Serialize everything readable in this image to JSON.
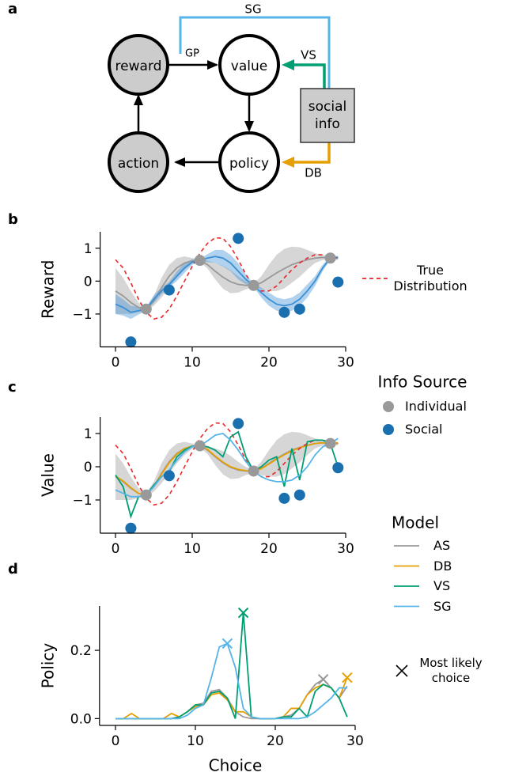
{
  "diagram": {
    "panel_label": "a",
    "nodes": [
      {
        "label": "reward"
      },
      {
        "label": "value"
      },
      {
        "label": "policy"
      },
      {
        "label": "action"
      },
      {
        "label": "social info"
      }
    ],
    "edges": [
      {
        "label": "GP"
      },
      {
        "label": "VS"
      },
      {
        "label": "DB"
      },
      {
        "label": "SG"
      }
    ]
  },
  "chart_data": [
    {
      "type": "line",
      "panel_label": "b",
      "ylabel": "Reward",
      "x": [
        0,
        1,
        2,
        3,
        4,
        5,
        6,
        7,
        8,
        9,
        10,
        11,
        12,
        13,
        14,
        15,
        16,
        17,
        18,
        19,
        20,
        21,
        22,
        23,
        24,
        25,
        26,
        27,
        28,
        29
      ],
      "xlim": [
        -2,
        30
      ],
      "xticks": [
        0,
        10,
        20,
        30
      ],
      "ylim": [
        -2,
        1.5
      ],
      "yticks": [
        {
          "value": -1,
          "label": "−1"
        },
        0,
        1
      ],
      "series": [
        {
          "color": "#999999",
          "values": [
            -0.3,
            -0.45,
            -0.65,
            -0.8,
            -0.85,
            -0.6,
            -0.2,
            0.15,
            0.4,
            0.55,
            0.62,
            0.63,
            0.5,
            0.3,
            0.12,
            -0.02,
            -0.1,
            -0.13,
            -0.13,
            -0.05,
            0.1,
            0.25,
            0.38,
            0.5,
            0.58,
            0.65,
            0.7,
            0.72,
            0.7,
            0.7
          ],
          "lower": [
            -1.0,
            -1.0,
            -1.0,
            -0.95,
            -0.9,
            -0.75,
            -0.5,
            -0.2,
            0.1,
            0.35,
            0.54,
            0.58,
            0.38,
            0.05,
            -0.23,
            -0.37,
            -0.35,
            -0.25,
            -0.18,
            -0.25,
            -0.3,
            -0.3,
            -0.22,
            -0.05,
            0.13,
            0.35,
            0.55,
            0.64,
            0.65,
            0.65
          ],
          "upper": [
            0.4,
            0.1,
            -0.3,
            -0.65,
            -0.8,
            -0.45,
            0.1,
            0.5,
            0.7,
            0.75,
            0.7,
            0.68,
            0.62,
            0.55,
            0.47,
            0.33,
            0.15,
            -0.01,
            -0.08,
            0.15,
            0.5,
            0.8,
            0.98,
            1.05,
            1.03,
            0.95,
            0.85,
            0.8,
            0.75,
            0.75
          ]
        },
        {
          "color": "#3b8fd4",
          "values": [
            -0.7,
            -0.8,
            -0.95,
            -0.9,
            -0.85,
            -0.55,
            -0.3,
            -0.1,
            0.15,
            0.4,
            0.58,
            0.63,
            0.7,
            0.75,
            0.7,
            0.55,
            0.3,
            0.05,
            -0.13,
            -0.35,
            -0.55,
            -0.7,
            -0.75,
            -0.7,
            -0.55,
            -0.3,
            0.0,
            0.4,
            0.7,
            0.72
          ],
          "lower": [
            -1.0,
            -1.05,
            -1.15,
            -1.02,
            -0.9,
            -0.67,
            -0.4,
            -0.18,
            0.0,
            0.25,
            0.5,
            0.58,
            0.58,
            0.55,
            0.45,
            0.3,
            0.05,
            -0.1,
            -0.18,
            -0.5,
            -0.75,
            -0.9,
            -0.95,
            -0.9,
            -0.75,
            -0.5,
            -0.15,
            0.3,
            0.65,
            0.67
          ],
          "upper": [
            -0.4,
            -0.55,
            -0.75,
            -0.78,
            -0.8,
            -0.43,
            -0.2,
            -0.02,
            0.3,
            0.55,
            0.66,
            0.68,
            0.82,
            0.95,
            0.95,
            0.8,
            0.55,
            0.2,
            -0.08,
            -0.2,
            -0.35,
            -0.5,
            -0.55,
            -0.5,
            -0.35,
            -0.1,
            0.15,
            0.5,
            0.75,
            0.77
          ]
        },
        {
          "name": "True Distribution",
          "color": "#e8282a",
          "dashed": true,
          "values": [
            0.65,
            0.4,
            -0.05,
            -0.55,
            -0.95,
            -1.15,
            -1.1,
            -0.85,
            -0.45,
            0.0,
            0.45,
            0.85,
            1.15,
            1.32,
            1.3,
            1.05,
            0.65,
            0.2,
            -0.15,
            -0.3,
            -0.3,
            -0.15,
            0.1,
            0.35,
            0.55,
            0.7,
            0.8,
            0.8,
            0.75,
            0.7
          ]
        }
      ],
      "scatter": [
        {
          "color": "#999999",
          "x": [
            4,
            11,
            18,
            28
          ],
          "y": [
            -0.85,
            0.63,
            -0.13,
            0.7
          ]
        },
        {
          "color": "#1a6faf",
          "x": [
            2,
            7,
            16,
            22,
            24,
            29
          ],
          "y": [
            -1.85,
            -0.27,
            1.3,
            -0.95,
            -0.85,
            -0.03
          ]
        }
      ]
    },
    {
      "type": "line",
      "panel_label": "c",
      "ylabel": "Value",
      "legend_title": "Info Source",
      "x": [
        0,
        1,
        2,
        3,
        4,
        5,
        6,
        7,
        8,
        9,
        10,
        11,
        12,
        13,
        14,
        15,
        16,
        17,
        18,
        19,
        20,
        21,
        22,
        23,
        24,
        25,
        26,
        27,
        28,
        29
      ],
      "xlim": [
        -2,
        30
      ],
      "xticks": [
        0,
        10,
        20,
        30
      ],
      "ylim": [
        -2,
        1.5
      ],
      "yticks": [
        {
          "value": -1,
          "label": "−1"
        },
        0,
        1
      ],
      "series": [
        {
          "color": "#999999",
          "values": [
            -0.3,
            -0.45,
            -0.65,
            -0.8,
            -0.85,
            -0.6,
            -0.2,
            0.15,
            0.4,
            0.55,
            0.62,
            0.63,
            0.5,
            0.3,
            0.12,
            -0.02,
            -0.1,
            -0.13,
            -0.13,
            -0.05,
            0.1,
            0.25,
            0.38,
            0.5,
            0.58,
            0.65,
            0.7,
            0.72,
            0.7,
            0.7
          ],
          "lower": [
            -1.0,
            -1.0,
            -1.0,
            -0.95,
            -0.9,
            -0.75,
            -0.5,
            -0.2,
            0.1,
            0.35,
            0.54,
            0.58,
            0.38,
            0.05,
            -0.23,
            -0.37,
            -0.35,
            -0.25,
            -0.18,
            -0.25,
            -0.3,
            -0.3,
            -0.22,
            -0.05,
            0.13,
            0.35,
            0.55,
            0.64,
            0.65,
            0.65
          ],
          "upper": [
            0.4,
            0.1,
            -0.3,
            -0.65,
            -0.8,
            -0.45,
            0.1,
            0.5,
            0.7,
            0.75,
            0.7,
            0.68,
            0.62,
            0.55,
            0.47,
            0.33,
            0.15,
            -0.01,
            -0.08,
            0.15,
            0.5,
            0.8,
            0.98,
            1.05,
            1.03,
            0.95,
            0.85,
            0.8,
            0.75,
            0.75
          ]
        },
        {
          "color": "#e69f00",
          "values": [
            -0.28,
            -0.43,
            -0.63,
            -0.8,
            -0.85,
            -0.6,
            -0.22,
            0.12,
            0.38,
            0.55,
            0.62,
            0.63,
            0.52,
            0.32,
            0.14,
            0.0,
            -0.08,
            -0.12,
            -0.13,
            -0.06,
            0.08,
            0.23,
            0.36,
            0.48,
            0.57,
            0.64,
            0.7,
            0.72,
            0.7,
            0.72
          ]
        },
        {
          "color": "#e8282a",
          "dashed": true,
          "values": [
            0.65,
            0.4,
            -0.05,
            -0.55,
            -0.95,
            -1.15,
            -1.1,
            -0.85,
            -0.45,
            0.0,
            0.45,
            0.85,
            1.15,
            1.32,
            1.3,
            1.05,
            0.65,
            0.2,
            -0.15,
            -0.3,
            -0.3,
            -0.15,
            0.1,
            0.35,
            0.55,
            0.7,
            0.8,
            0.8,
            0.75,
            0.7
          ]
        },
        {
          "color": "#009e73",
          "values": [
            -0.25,
            -0.6,
            -1.5,
            -0.9,
            -0.85,
            -0.55,
            -0.3,
            -0.15,
            0.3,
            0.5,
            0.62,
            0.63,
            0.6,
            0.5,
            0.3,
            0.9,
            1.05,
            0.3,
            -0.13,
            0.0,
            0.2,
            0.3,
            -0.6,
            0.55,
            -0.4,
            0.75,
            0.8,
            0.8,
            0.7,
            0.0
          ]
        },
        {
          "color": "#56b4e9",
          "values": [
            -0.7,
            -0.8,
            -0.9,
            -0.9,
            -0.85,
            -0.6,
            -0.3,
            -0.1,
            0.2,
            0.45,
            0.6,
            0.63,
            0.78,
            0.95,
            1.0,
            0.8,
            0.5,
            0.15,
            -0.13,
            -0.3,
            -0.4,
            -0.45,
            -0.45,
            -0.4,
            -0.25,
            0.0,
            0.35,
            0.6,
            0.7,
            0.85
          ]
        }
      ],
      "scatter": [
        {
          "name": "Individual",
          "color": "#999999",
          "x": [
            4,
            11,
            18,
            28
          ],
          "y": [
            -0.85,
            0.63,
            -0.13,
            0.7
          ]
        },
        {
          "name": "Social",
          "color": "#1a6faf",
          "x": [
            2,
            7,
            16,
            22,
            24,
            29
          ],
          "y": [
            -1.85,
            -0.27,
            1.3,
            -0.95,
            -0.85,
            -0.03
          ]
        }
      ]
    },
    {
      "type": "line",
      "panel_label": "d",
      "ylabel": "Policy",
      "xlabel": "Choice",
      "legend_title": "Model",
      "mark_max": true,
      "marker_label": "Most likely choice",
      "x": [
        0,
        1,
        2,
        3,
        4,
        5,
        6,
        7,
        8,
        9,
        10,
        11,
        12,
        13,
        14,
        15,
        16,
        17,
        18,
        19,
        20,
        21,
        22,
        23,
        24,
        25,
        26,
        27,
        28,
        29
      ],
      "xlim": [
        -2,
        30
      ],
      "xticks": [
        0,
        10,
        20,
        30
      ],
      "ylim": [
        -0.02,
        0.33
      ],
      "yticks": [
        {
          "value": 0,
          "label": "0.0"
        },
        0.2
      ],
      "series": [
        {
          "name": "AS",
          "color": "#999999",
          "values": [
            0,
            0,
            0,
            0,
            0,
            0,
            0,
            0,
            0.005,
            0.02,
            0.04,
            0.045,
            0.08,
            0.085,
            0.06,
            0.02,
            0.005,
            0,
            0,
            0,
            0,
            0.005,
            0.01,
            0.03,
            0.07,
            0.1,
            0.115,
            0.09,
            0.06,
            0.095
          ]
        },
        {
          "name": "DB",
          "color": "#e69f00",
          "values": [
            0,
            0,
            0.015,
            0,
            0,
            0,
            0,
            0.015,
            0.005,
            0.02,
            0.035,
            0.04,
            0.07,
            0.075,
            0.055,
            0.02,
            0.02,
            0.005,
            0,
            0,
            0,
            0.005,
            0.03,
            0.03,
            0.07,
            0.09,
            0.1,
            0.09,
            0.06,
            0.12
          ]
        },
        {
          "name": "VS",
          "color": "#009e73",
          "values": [
            0,
            0,
            0,
            0,
            0,
            0,
            0,
            0,
            0.005,
            0.02,
            0.04,
            0.04,
            0.075,
            0.08,
            0.06,
            0,
            0.31,
            0.005,
            0,
            0,
            0,
            0.005,
            0.005,
            0.03,
            0.005,
            0.08,
            0.1,
            0.09,
            0.06,
            0.005
          ]
        },
        {
          "name": "SG",
          "color": "#56b4e9",
          "values": [
            0,
            0,
            0,
            0,
            0,
            0,
            0,
            0,
            0,
            0.01,
            0.03,
            0.04,
            0.12,
            0.21,
            0.22,
            0.15,
            0.03,
            0.005,
            0,
            0,
            0,
            0,
            0,
            0,
            0.005,
            0.02,
            0.04,
            0.06,
            0.09,
            0.09
          ]
        }
      ]
    }
  ]
}
